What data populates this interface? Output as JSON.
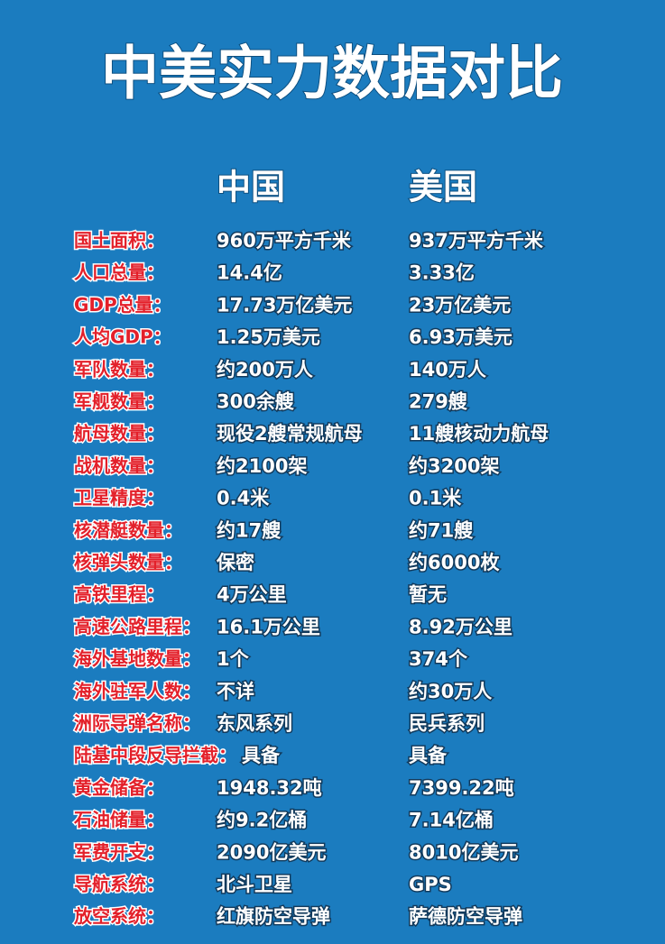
{
  "header": {
    "title": "中美实力数据对比"
  },
  "table": {
    "columns": [
      "中国",
      "美国"
    ],
    "rows": [
      [
        "国土面积：",
        "960万平方千米",
        "937万平方千米"
      ],
      [
        "人口总量：",
        "14.4亿",
        "3.33亿"
      ],
      [
        "GDP总量：",
        "17.73万亿美元",
        "23万亿美元"
      ],
      [
        "人均GDP：",
        "1.25万美元",
        "6.93万美元"
      ],
      [
        "军队数量：",
        "约200万人",
        "140万人"
      ],
      [
        "军舰数量：",
        "300余艘",
        "279艘"
      ],
      [
        "航母数量：",
        "现役2艘常规航母",
        "11艘核动力航母"
      ],
      [
        "战机数量：",
        "约2100架",
        "约3200架"
      ],
      [
        "卫星精度：",
        "0.4米",
        "0.1米"
      ],
      [
        "核潜艇数量：",
        "约17艘",
        "约71艘"
      ],
      [
        "核弹头数量：",
        "保密",
        "约6000枚"
      ],
      [
        "高铁里程：",
        "4万公里",
        "暂无"
      ],
      [
        "高速公路里程：",
        "16.1万公里",
        "8.92万公里"
      ],
      [
        "海外基地数量：",
        "1个",
        "374个"
      ],
      [
        "海外驻军人数：",
        "不详",
        "约30万人"
      ],
      [
        "洲际导弹名称：",
        "东风系列",
        "民兵系列"
      ],
      [
        "陆基中段反导拦截：",
        "具备",
        "具备"
      ],
      [
        "黄金储备：",
        "1948.32吨",
        "7399.22吨"
      ],
      [
        "石油储量：",
        "约9.2亿桶",
        "7.14亿桶"
      ],
      [
        "军费开支：",
        "2090亿美元",
        "8010亿美元"
      ],
      [
        "导航系统：",
        "北斗卫星",
        "GPS"
      ],
      [
        "放空系统：",
        "红旗防空导弹",
        "萨德防空导弹"
      ]
    ]
  }
}
